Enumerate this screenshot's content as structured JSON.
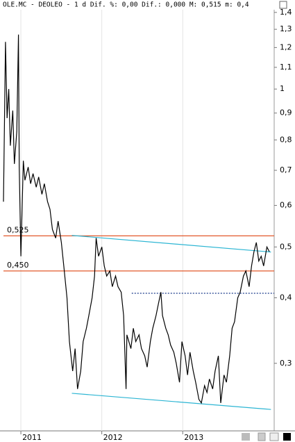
{
  "chart_data": {
    "type": "line",
    "title": "OLE.MC - DEOLEO -  1 d Dif. %: 0,00 Dif.: 0,000 M: 0,515 m: 0,4",
    "log_scale": true,
    "grid": true,
    "xlim": [
      2010.785,
      2014.13
    ],
    "xticks": [
      2011,
      2012,
      2013
    ],
    "ylim": [
      0.223,
      1.456
    ],
    "yticks": [
      {
        "value": 1.4,
        "label": "1,4"
      },
      {
        "value": 1.3,
        "label": "1,3"
      },
      {
        "value": 1.2,
        "label": "1,2"
      },
      {
        "value": 1.1,
        "label": "1,1"
      },
      1,
      {
        "value": 0.9,
        "label": "0,9"
      },
      {
        "value": 0.8,
        "label": "0,8"
      },
      {
        "value": 0.7,
        "label": "0,7"
      },
      {
        "value": 0.6,
        "label": "0,6"
      },
      {
        "value": 0.5,
        "label": "0,5"
      },
      {
        "value": 0.4,
        "label": "0,4"
      },
      {
        "value": 0.3,
        "label": "0,3"
      }
    ],
    "series": [
      {
        "color": "#000000",
        "x": [
          2010.785,
          2010.81,
          2010.83,
          2010.85,
          2010.87,
          2010.9,
          2010.92,
          2010.95,
          2010.97,
          2010.98,
          2011.0,
          2011.03,
          2011.05,
          2011.09,
          2011.12,
          2011.15,
          2011.19,
          2011.22,
          2011.26,
          2011.29,
          2011.33,
          2011.36,
          2011.39,
          2011.43,
          2011.46,
          2011.5,
          2011.53,
          2011.57,
          2011.6,
          2011.64,
          2011.67,
          2011.7,
          2011.74,
          2011.77,
          2011.81,
          2011.84,
          2011.88,
          2011.91,
          2011.93,
          2011.96,
          2012.0,
          2012.03,
          2012.06,
          2012.1,
          2012.13,
          2012.17,
          2012.2,
          2012.24,
          2012.27,
          2012.3,
          2012.31,
          2012.36,
          2012.39,
          2012.42,
          2012.46,
          2012.49,
          2012.53,
          2012.56,
          2012.6,
          2012.63,
          2012.67,
          2012.7,
          2012.73,
          2012.75,
          2012.79,
          2012.82,
          2012.85,
          2012.89,
          2012.92,
          2012.96,
          2012.99,
          2013.03,
          2013.06,
          2013.09,
          2013.13,
          2013.16,
          2013.2,
          2013.23,
          2013.27,
          2013.3,
          2013.33,
          2013.37,
          2013.4,
          2013.44,
          2013.47,
          2013.51,
          2013.54,
          2013.58,
          2013.61,
          2013.64,
          2013.68,
          2013.71,
          2013.75,
          2013.78,
          2013.82,
          2013.85,
          2013.88,
          2013.91,
          2013.94,
          2013.97,
          2014.0,
          2014.04,
          2014.07
        ],
        "values": [
          0.61,
          1.23,
          0.88,
          1.0,
          0.78,
          0.91,
          0.72,
          0.83,
          1.27,
          0.71,
          0.48,
          0.73,
          0.67,
          0.71,
          0.66,
          0.69,
          0.65,
          0.68,
          0.63,
          0.66,
          0.61,
          0.59,
          0.54,
          0.52,
          0.56,
          0.51,
          0.46,
          0.4,
          0.33,
          0.29,
          0.32,
          0.268,
          0.29,
          0.33,
          0.35,
          0.37,
          0.4,
          0.44,
          0.52,
          0.48,
          0.5,
          0.46,
          0.44,
          0.45,
          0.42,
          0.44,
          0.42,
          0.41,
          0.37,
          0.268,
          0.34,
          0.32,
          0.35,
          0.33,
          0.34,
          0.32,
          0.31,
          0.295,
          0.33,
          0.35,
          0.37,
          0.39,
          0.41,
          0.37,
          0.35,
          0.34,
          0.325,
          0.315,
          0.3,
          0.276,
          0.33,
          0.31,
          0.285,
          0.315,
          0.29,
          0.276,
          0.256,
          0.252,
          0.272,
          0.264,
          0.28,
          0.268,
          0.29,
          0.31,
          0.252,
          0.285,
          0.276,
          0.31,
          0.35,
          0.36,
          0.4,
          0.41,
          0.44,
          0.45,
          0.42,
          0.46,
          0.49,
          0.51,
          0.47,
          0.48,
          0.46,
          0.5,
          0.49
        ]
      }
    ],
    "hlines": [
      {
        "value": 0.525,
        "label": "0,525",
        "color": "#e2582a"
      },
      {
        "value": 0.45,
        "label": "0,450",
        "color": "#e2582a"
      }
    ],
    "trendlines": [
      {
        "x": [
          2011.63,
          2014.09
        ],
        "y": [
          0.526,
          0.489
        ],
        "color": "#2bb5d3",
        "dashed": false
      },
      {
        "x": [
          2011.63,
          2014.09
        ],
        "y": [
          0.263,
          0.245
        ],
        "color": "#2bb5d3",
        "dashed": false
      },
      {
        "x": [
          2012.37,
          2014.13
        ],
        "y": [
          0.408,
          0.408
        ],
        "color": "#1a3a8a",
        "dashed": true
      }
    ]
  }
}
